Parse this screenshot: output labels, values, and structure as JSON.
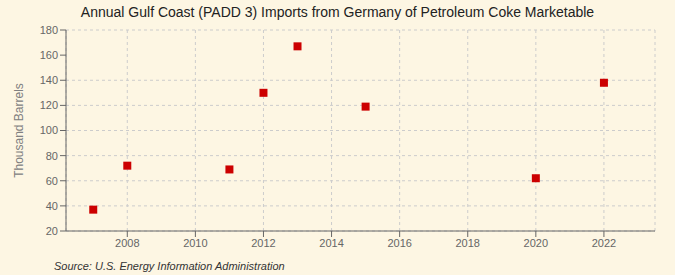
{
  "chart_data": {
    "type": "scatter",
    "title": "Annual Gulf Coast (PADD 3) Imports from Germany of Petroleum Coke Marketable",
    "ylabel": "Thousand Barrels",
    "annotation": "Source: U.S. Energy Information Administration",
    "x": [
      2007,
      2008,
      2011,
      2012,
      2013,
      2015,
      2020,
      2022
    ],
    "values": [
      37,
      72,
      69,
      130,
      167,
      119,
      62,
      138
    ],
    "color": "#cc0000",
    "marker": "square",
    "xlim": [
      2006.2,
      2023.5
    ],
    "ylim": [
      20,
      180
    ],
    "xticks": [
      2008,
      2010,
      2012,
      2014,
      2016,
      2018,
      2020,
      2022
    ],
    "yticks": [
      20,
      40,
      60,
      80,
      100,
      120,
      140,
      160,
      180
    ],
    "grid": true
  }
}
